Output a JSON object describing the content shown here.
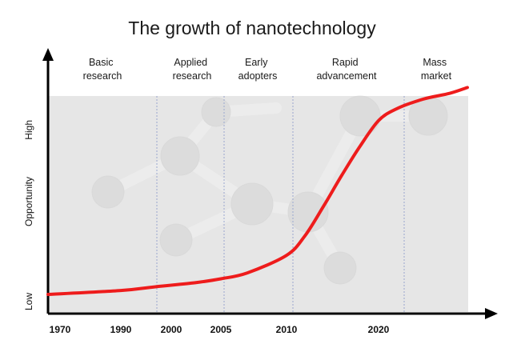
{
  "title": "The growth of nanotechnology",
  "chart_data": {
    "type": "line",
    "title": "The growth of nanotechnology",
    "ylabel": "Opportunity",
    "y_tick_labels": [
      "Low",
      "High"
    ],
    "x_tick_labels": [
      "1970",
      "1990",
      "2000",
      "2005",
      "2010",
      "2020"
    ],
    "phases": [
      "Basic research",
      "Applied research",
      "Early adopters",
      "Rapid advancement",
      "Mass market"
    ],
    "grid": false,
    "series": [
      {
        "color": "#ee1c1c",
        "points": [
          [
            1970,
            0.0
          ],
          [
            1990,
            0.02
          ],
          [
            2000,
            0.04
          ],
          [
            2003,
            0.06
          ],
          [
            2005,
            0.08
          ],
          [
            2007,
            0.11
          ],
          [
            2010,
            0.2
          ],
          [
            2012,
            0.3
          ],
          [
            2014,
            0.45
          ],
          [
            2016,
            0.61
          ],
          [
            2018,
            0.76
          ],
          [
            2020,
            0.89
          ],
          [
            2022,
            0.95
          ],
          [
            2025,
            1.0
          ],
          [
            2028,
            1.03
          ],
          [
            2030,
            1.06
          ]
        ]
      }
    ]
  }
}
